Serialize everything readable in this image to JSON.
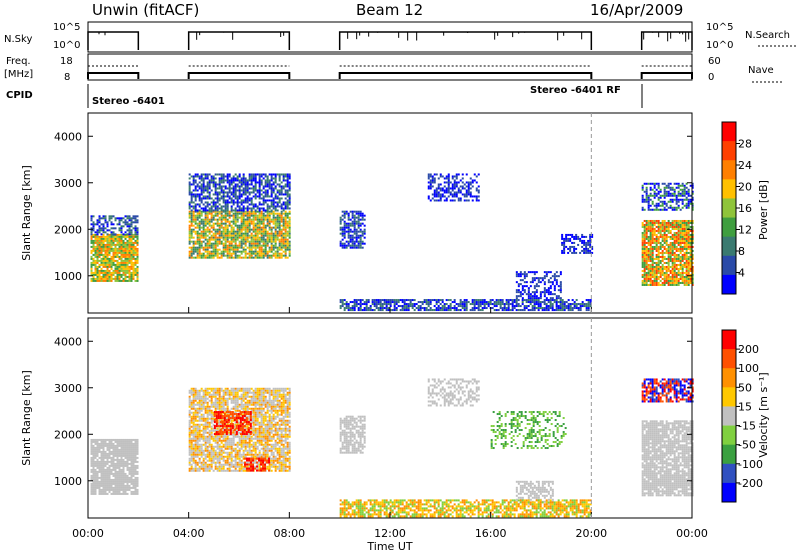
{
  "header": {
    "title_left": "Unwin (fitACF)",
    "title_center": "Beam 12",
    "title_right": "16/Apr/2009"
  },
  "strip": {
    "nsky_label": "N.Sky",
    "nsky_ticks": [
      "10^5",
      "10^0"
    ],
    "nsearch_label": "N.Search",
    "nsearch_ticks": [
      "10^5",
      "10^0"
    ],
    "freq_label_1": "Freq.",
    "freq_label_2": "[MHz]",
    "freq_ticks": [
      "18",
      "8"
    ],
    "nave_label": "Nave",
    "nave_ticks": [
      "60",
      "0"
    ],
    "cpid_label": "CPID",
    "cpid_text_1": "Stereo -6401",
    "cpid_text_2": "Stereo -6401 RF"
  },
  "colors": {
    "power_scale": [
      "#0000ff",
      "#2a4aa8",
      "#3a7a70",
      "#3f9e3f",
      "#8fc43a",
      "#ffc000",
      "#ff7f00",
      "#ff4000",
      "#ff0000"
    ],
    "velocity_scale": [
      "#0000ff",
      "#3050c0",
      "#3aa040",
      "#80d040",
      "#c0c0c0",
      "#ffc800",
      "#ff9000",
      "#ff5000",
      "#ff0000"
    ]
  },
  "chart_data": [
    {
      "type": "heatmap",
      "title": "",
      "ylabel": "Slant Range [km]",
      "ylim": [
        200,
        4500
      ],
      "y_ticks": [
        "4000",
        "3000",
        "2000",
        "1000"
      ],
      "colorbar_label": "Power [dB]",
      "colorbar_ticks": [
        "28",
        "24",
        "20",
        "16",
        "12",
        "8",
        "4"
      ],
      "clim": [
        0,
        30
      ]
    },
    {
      "type": "heatmap",
      "title": "",
      "xlabel": "Time UT",
      "ylabel": "Slant Range [km]",
      "ylim": [
        200,
        4500
      ],
      "y_ticks": [
        "4000",
        "3000",
        "2000",
        "1000"
      ],
      "x_ticks": [
        "00:00",
        "04:00",
        "08:00",
        "12:00",
        "16:00",
        "20:00",
        "00:00"
      ],
      "colorbar_label": "Velocity [m s⁻¹]",
      "colorbar_ticks": [
        "200",
        "100",
        "50",
        "15",
        "-15",
        "-50",
        "-100",
        "-200"
      ],
      "clim": [
        -250,
        250
      ]
    }
  ]
}
